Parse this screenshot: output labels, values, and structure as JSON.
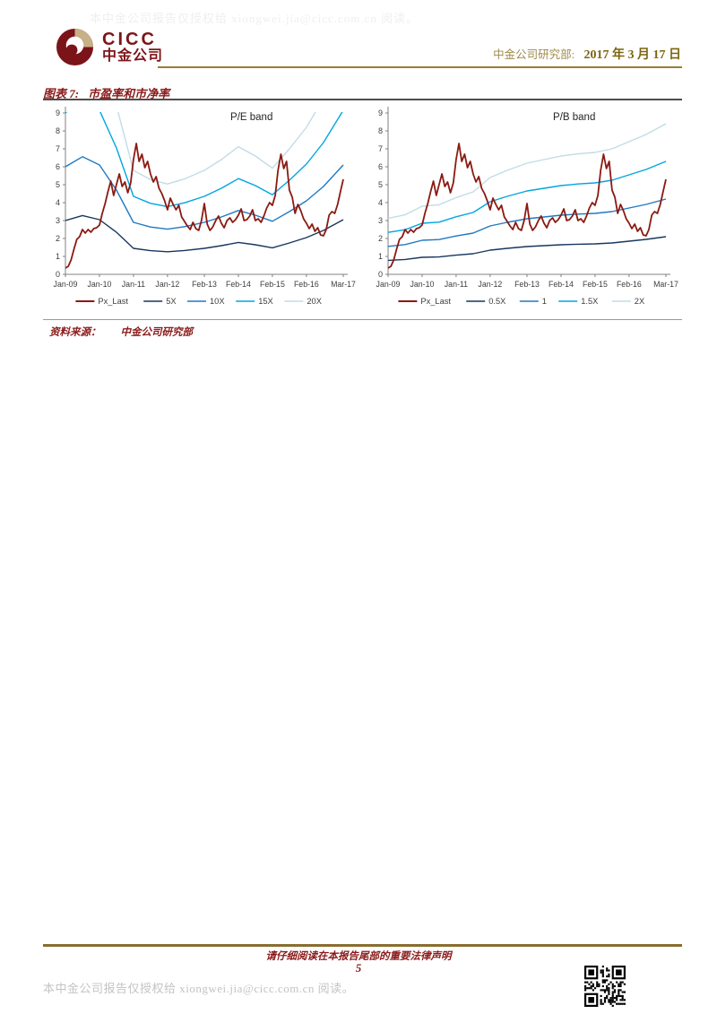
{
  "page": {
    "watermark_top": "本中金公司报告仅授权给 xiongwei.jia@cicc.com.cn 阅读。",
    "watermark_bottom": "本中金公司报告仅授权给 xiongwei.jia@cicc.com.cn 阅读。"
  },
  "header": {
    "logo_en": "CICC",
    "logo_cn": "中金公司",
    "dept_label": "中金公司研究部:",
    "date": "2017 年 3 月 17 日"
  },
  "figure": {
    "label": "图表 7:",
    "title": "市盈率和市净率",
    "source_label": "资料来源：",
    "source_value": "中金公司研究部"
  },
  "footer": {
    "legal": "请仔细阅读在本报告尾部的重要法律声明",
    "page_number": "5"
  },
  "colors": {
    "brand_red": "#7e1418",
    "accent_gold": "#9a7d33",
    "heading_red": "#8b1a1a"
  },
  "chart_data": [
    {
      "type": "line",
      "title": "P/E band",
      "xlabel": "",
      "ylabel": "",
      "ylim": [
        0,
        9
      ],
      "y_tick_step": 1,
      "grid": false,
      "legend_position": "bottom",
      "x_unit": "months since Jan-2009",
      "x_range": [
        0,
        98
      ],
      "x_ticks": {
        "labels": [
          "Jan-09",
          "Jan-10",
          "Jan-11",
          "Jan-12",
          "Feb-13",
          "Feb-14",
          "Feb-15",
          "Feb-16",
          "Mar-17"
        ],
        "months": [
          0,
          12,
          24,
          36,
          49,
          61,
          73,
          85,
          98
        ]
      },
      "series": [
        {
          "name": "Px_Last",
          "color": "#8b1a12",
          "x_start": 0,
          "x_step": 1,
          "values": [
            0.35,
            0.45,
            0.8,
            1.4,
            1.95,
            2.1,
            2.5,
            2.3,
            2.5,
            2.35,
            2.55,
            2.6,
            2.75,
            3.4,
            3.95,
            4.6,
            5.2,
            4.4,
            5.0,
            5.6,
            4.9,
            5.15,
            4.55,
            5.1,
            6.4,
            7.3,
            6.3,
            6.7,
            5.95,
            6.3,
            5.6,
            5.15,
            5.45,
            4.8,
            4.5,
            4.1,
            3.6,
            4.25,
            3.9,
            3.6,
            3.85,
            3.2,
            2.95,
            2.7,
            2.5,
            2.9,
            2.55,
            2.45,
            3.0,
            3.95,
            2.8,
            2.45,
            2.65,
            3.0,
            3.25,
            2.85,
            2.6,
            3.0,
            3.15,
            2.9,
            3.05,
            3.3,
            3.65,
            3.0,
            3.05,
            3.25,
            3.6,
            3.0,
            3.1,
            2.9,
            3.25,
            3.7,
            4.0,
            3.85,
            4.4,
            5.8,
            6.7,
            5.9,
            6.3,
            4.7,
            4.3,
            3.4,
            3.9,
            3.55,
            3.1,
            2.85,
            2.55,
            2.8,
            2.4,
            2.6,
            2.2,
            2.15,
            2.5,
            3.3,
            3.5,
            3.4,
            3.9,
            4.6,
            5.3
          ]
        },
        {
          "name": "5X",
          "color": "#17375e",
          "x": [
            0,
            6,
            12,
            18,
            24,
            30,
            36,
            42,
            49,
            55,
            61,
            67,
            73,
            79,
            85,
            91,
            98
          ],
          "values": [
            3.0,
            3.28,
            3.05,
            2.35,
            1.45,
            1.32,
            1.26,
            1.33,
            1.45,
            1.6,
            1.78,
            1.65,
            1.48,
            1.75,
            2.05,
            2.45,
            3.05
          ]
        },
        {
          "name": "10X",
          "color": "#2079c2",
          "x": [
            0,
            6,
            12,
            18,
            24,
            30,
            36,
            42,
            49,
            55,
            61,
            67,
            73,
            79,
            85,
            91,
            98
          ],
          "values": [
            6.0,
            6.56,
            6.1,
            4.7,
            2.9,
            2.64,
            2.52,
            2.66,
            2.9,
            3.2,
            3.56,
            3.3,
            2.96,
            3.5,
            4.1,
            4.9,
            6.1
          ]
        },
        {
          "name": "15X",
          "color": "#00a6e0",
          "x": [
            0,
            6,
            12,
            18,
            24,
            30,
            36,
            42,
            49,
            55,
            61,
            67,
            73,
            79,
            85,
            91,
            98
          ],
          "values": [
            9.0,
            9.84,
            9.15,
            7.05,
            4.35,
            3.96,
            3.78,
            3.99,
            4.35,
            4.8,
            5.34,
            4.95,
            4.44,
            5.25,
            6.15,
            7.35,
            9.15
          ]
        },
        {
          "name": "20X",
          "color": "#c2dce6",
          "x": [
            0,
            6,
            12,
            18,
            24,
            30,
            36,
            42,
            49,
            55,
            61,
            67,
            73,
            79,
            85,
            91,
            98
          ],
          "values": [
            12.0,
            13.12,
            12.2,
            9.4,
            5.8,
            5.28,
            5.04,
            5.32,
            5.8,
            6.4,
            7.12,
            6.6,
            5.92,
            7.0,
            8.2,
            9.8,
            12.2
          ]
        }
      ]
    },
    {
      "type": "line",
      "title": "P/B band",
      "xlabel": "",
      "ylabel": "",
      "ylim": [
        0,
        9
      ],
      "y_tick_step": 1,
      "grid": false,
      "legend_position": "bottom",
      "x_unit": "months since Jan-2009",
      "x_range": [
        0,
        98
      ],
      "x_ticks": {
        "labels": [
          "Jan-09",
          "Jan-10",
          "Jan-11",
          "Jan-12",
          "Feb-13",
          "Feb-14",
          "Feb-15",
          "Feb-16",
          "Mar-17"
        ],
        "months": [
          0,
          12,
          24,
          36,
          49,
          61,
          73,
          85,
          98
        ]
      },
      "series": [
        {
          "name": "Px_Last",
          "color": "#8b1a12",
          "x_start": 0,
          "x_step": 1,
          "values": [
            0.35,
            0.45,
            0.8,
            1.4,
            1.95,
            2.1,
            2.5,
            2.3,
            2.5,
            2.35,
            2.55,
            2.6,
            2.75,
            3.4,
            3.95,
            4.6,
            5.2,
            4.4,
            5.0,
            5.6,
            4.9,
            5.15,
            4.55,
            5.1,
            6.4,
            7.3,
            6.3,
            6.7,
            5.95,
            6.3,
            5.6,
            5.15,
            5.45,
            4.8,
            4.5,
            4.1,
            3.6,
            4.25,
            3.9,
            3.6,
            3.85,
            3.2,
            2.95,
            2.7,
            2.5,
            2.9,
            2.55,
            2.45,
            3.0,
            3.95,
            2.8,
            2.45,
            2.65,
            3.0,
            3.25,
            2.85,
            2.6,
            3.0,
            3.15,
            2.9,
            3.05,
            3.3,
            3.65,
            3.0,
            3.05,
            3.25,
            3.6,
            3.0,
            3.1,
            2.9,
            3.25,
            3.7,
            4.0,
            3.85,
            4.4,
            5.8,
            6.7,
            5.9,
            6.3,
            4.7,
            4.3,
            3.4,
            3.9,
            3.55,
            3.1,
            2.85,
            2.55,
            2.8,
            2.4,
            2.6,
            2.2,
            2.15,
            2.5,
            3.3,
            3.5,
            3.4,
            3.9,
            4.6,
            5.3
          ]
        },
        {
          "name": "0.5X",
          "color": "#17375e",
          "x": [
            0,
            6,
            12,
            18,
            24,
            30,
            36,
            42,
            49,
            55,
            61,
            67,
            73,
            79,
            85,
            91,
            98
          ],
          "values": [
            0.78,
            0.83,
            0.95,
            0.97,
            1.07,
            1.15,
            1.35,
            1.45,
            1.55,
            1.6,
            1.65,
            1.68,
            1.7,
            1.75,
            1.85,
            1.95,
            2.1
          ]
        },
        {
          "name": "1",
          "color": "#2079c2",
          "x": [
            0,
            6,
            12,
            18,
            24,
            30,
            36,
            42,
            49,
            55,
            61,
            67,
            73,
            79,
            85,
            91,
            98
          ],
          "values": [
            1.56,
            1.66,
            1.9,
            1.94,
            2.14,
            2.3,
            2.7,
            2.9,
            3.1,
            3.2,
            3.3,
            3.36,
            3.4,
            3.5,
            3.7,
            3.9,
            4.2
          ]
        },
        {
          "name": "1.5X",
          "color": "#00a6e0",
          "x": [
            0,
            6,
            12,
            18,
            24,
            30,
            36,
            42,
            49,
            55,
            61,
            67,
            73,
            79,
            85,
            91,
            98
          ],
          "values": [
            2.34,
            2.49,
            2.85,
            2.91,
            3.21,
            3.45,
            4.05,
            4.35,
            4.65,
            4.8,
            4.95,
            5.04,
            5.1,
            5.25,
            5.55,
            5.85,
            6.3
          ]
        },
        {
          "name": "2X",
          "color": "#c2dce6",
          "x": [
            0,
            6,
            12,
            18,
            24,
            30,
            36,
            42,
            49,
            55,
            61,
            67,
            73,
            79,
            85,
            91,
            98
          ],
          "values": [
            3.12,
            3.32,
            3.8,
            3.88,
            4.28,
            4.6,
            5.4,
            5.8,
            6.2,
            6.4,
            6.6,
            6.72,
            6.8,
            7.0,
            7.4,
            7.8,
            8.4
          ]
        }
      ]
    }
  ]
}
